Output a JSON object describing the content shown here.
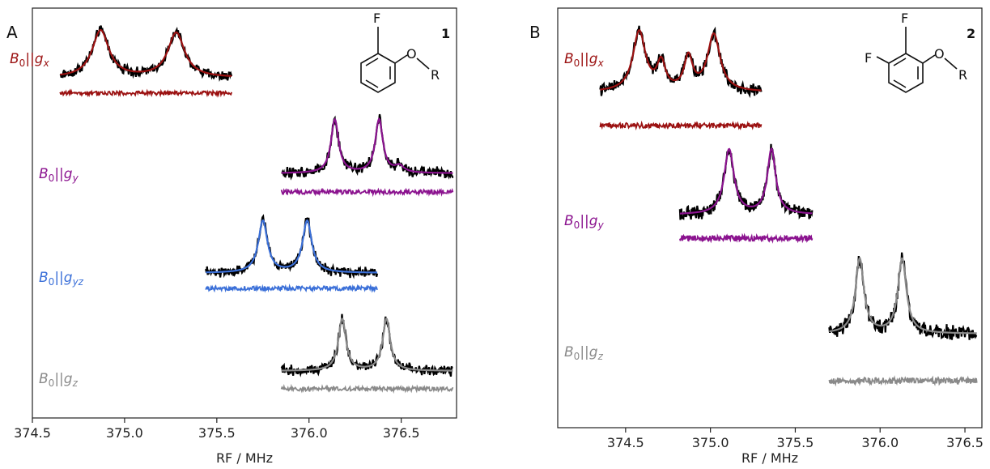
{
  "colors": {
    "x": "#9b1111",
    "y": "#8b138f",
    "yz": "#3a6fd8",
    "z": "#8a8a8a",
    "exp": "#000000"
  },
  "chart_data": [
    {
      "panel": "A",
      "type": "line",
      "compound": "1",
      "molecule": {
        "substituents": [
          "F",
          "O",
          "R"
        ]
      },
      "xlabel": "RF / MHz",
      "xlim": [
        374.5,
        376.8
      ],
      "xticks": [
        "374.5",
        "375.0",
        "375.5",
        "376.0",
        "376.5"
      ],
      "xtick_values": [
        374.5,
        375.0,
        375.5,
        376.0,
        376.5
      ],
      "series": [
        {
          "name": "B0||gx",
          "label_main": "B",
          "label_sub0": "0",
          "label_bars": "||",
          "label_g": "g",
          "label_sub": "x",
          "color_key": "x",
          "x_range": [
            374.65,
            375.58
          ],
          "peaks": [
            374.87,
            375.28
          ],
          "widths": [
            0.055,
            0.055
          ],
          "heights": [
            1.0,
            0.95
          ]
        },
        {
          "name": "B0||gy",
          "label_main": "B",
          "label_sub0": "0",
          "label_bars": "||",
          "label_g": "g",
          "label_sub": "y",
          "color_key": "y",
          "x_range": [
            375.85,
            376.78
          ],
          "peaks": [
            376.14,
            376.38,
            376.49
          ],
          "widths": [
            0.025,
            0.025,
            0.03
          ],
          "heights": [
            1.0,
            1.0,
            0.12
          ]
        },
        {
          "name": "B0||gyz",
          "label_main": "B",
          "label_sub0": "0",
          "label_bars": "||",
          "label_g": "g",
          "label_sub": "yz",
          "color_key": "yz",
          "x_range": [
            375.44,
            376.37
          ],
          "peaks": [
            375.75,
            375.99
          ],
          "widths": [
            0.03,
            0.03
          ],
          "heights": [
            1.0,
            1.0
          ]
        },
        {
          "name": "B0||gz",
          "label_main": "B",
          "label_sub0": "0",
          "label_bars": "||",
          "label_g": "g",
          "label_sub": "z",
          "color_key": "z",
          "x_range": [
            375.85,
            376.78
          ],
          "peaks": [
            376.18,
            376.42
          ],
          "widths": [
            0.025,
            0.025
          ],
          "heights": [
            1.0,
            1.0
          ]
        }
      ]
    },
    {
      "panel": "B",
      "type": "line",
      "compound": "2",
      "molecule": {
        "substituents": [
          "F",
          "F",
          "O",
          "R"
        ]
      },
      "xlabel": "RF / MHz",
      "xlim": [
        374.1,
        376.6
      ],
      "xticks": [
        "374.5",
        "375.0",
        "375.5",
        "376.0",
        "376.5"
      ],
      "xtick_values": [
        374.5,
        375.0,
        375.5,
        376.0,
        376.5
      ],
      "series": [
        {
          "name": "B0||gx",
          "label_main": "B",
          "label_sub0": "0",
          "label_bars": "||",
          "label_g": "g",
          "label_sub": "x",
          "color_key": "x",
          "x_range": [
            374.35,
            375.3
          ],
          "peaks": [
            374.58,
            374.71,
            374.87,
            375.02
          ],
          "widths": [
            0.045,
            0.03,
            0.03,
            0.045
          ],
          "heights": [
            1.0,
            0.45,
            0.55,
            0.95
          ]
        },
        {
          "name": "B0||gy",
          "label_main": "B",
          "label_sub0": "0",
          "label_bars": "||",
          "label_g": "g",
          "label_sub": "y",
          "color_key": "y",
          "x_range": [
            374.82,
            375.6
          ],
          "peaks": [
            375.11,
            375.36
          ],
          "widths": [
            0.035,
            0.03
          ],
          "heights": [
            1.0,
            1.0
          ]
        },
        {
          "name": "B0||gz",
          "label_main": "B",
          "label_sub0": "0",
          "label_bars": "||",
          "label_g": "g",
          "label_sub": "z",
          "color_key": "z",
          "x_range": [
            375.7,
            376.57
          ],
          "peaks": [
            375.88,
            376.13
          ],
          "widths": [
            0.03,
            0.03
          ],
          "heights": [
            1.0,
            1.0
          ]
        }
      ]
    }
  ]
}
